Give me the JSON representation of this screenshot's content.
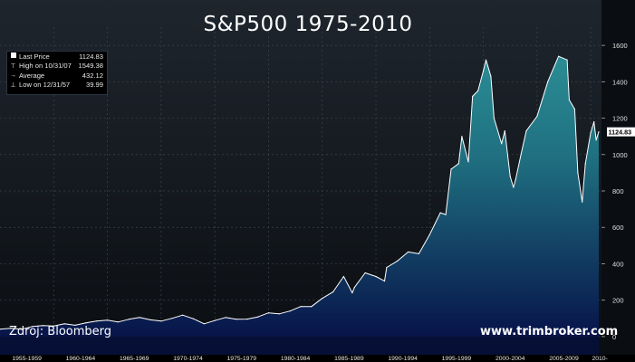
{
  "title": "S&P500 1975-2010",
  "legend": [
    {
      "icon": "square-icon",
      "label": "Last Price",
      "value": "1124.83"
    },
    {
      "icon": "high-marker-icon",
      "label": "High on 10/31/07",
      "value": "1549.38"
    },
    {
      "icon": "average-line-icon",
      "label": "Average",
      "value": "432.12"
    },
    {
      "icon": "low-marker-icon",
      "label": "Low on 12/31/57",
      "value": "39.99"
    }
  ],
  "last_price_tag": "1124.83",
  "source": "Zdroj: Bloomberg",
  "website": "www.trimbroker.com",
  "colors": {
    "background": "#0b0f14",
    "area_top": "#2a8b93",
    "area_bottom": "#07144a",
    "line": "#ffffff"
  },
  "chart_data": {
    "type": "area",
    "title": "S&P500 1975-2010",
    "xlabel": "",
    "ylabel": "",
    "xlim": [
      1955,
      2011
    ],
    "ylim": [
      -100,
      1700
    ],
    "y_ticks": [
      0,
      200,
      400,
      600,
      800,
      1000,
      1200,
      1400,
      1600
    ],
    "x_tick_labels": [
      "1955-1959",
      "1960-1964",
      "1965-1969",
      "1970-1974",
      "1975-1979",
      "1980-1984",
      "1985-1989",
      "1990-1994",
      "1995-1999",
      "2000-2004",
      "2005-2009",
      "2010-"
    ],
    "grid": true,
    "legend_position": "top-left",
    "series": [
      {
        "x": [
          1955,
          1956,
          1957,
          1958,
          1959,
          1960,
          1961,
          1962,
          1963,
          1964,
          1965,
          1966,
          1967,
          1968,
          1969,
          1970,
          1971,
          1972,
          1973,
          1974,
          1975,
          1976,
          1977,
          1978,
          1979,
          1980,
          1981,
          1982,
          1983,
          1984,
          1985,
          1986,
          1987,
          1987.8,
          1988,
          1989,
          1990,
          1990.8,
          1991,
          1992,
          1993,
          1994,
          1995,
          1996,
          1996.5,
          1997,
          1997.7,
          1998,
          1998.6,
          1999,
          1999.5,
          2000,
          2000.25,
          2000.7,
          2001,
          2001.7,
          2002,
          2002.5,
          2002.8,
          2003,
          2003.5,
          2004,
          2005,
          2006,
          2007,
          2007.8,
          2008,
          2008.5,
          2008.8,
          2009.2,
          2009.5,
          2010,
          2010.3,
          2010.5,
          2010.75
        ],
        "values": [
          40,
          45,
          40,
          55,
          60,
          58,
          70,
          62,
          75,
          85,
          90,
          80,
          95,
          105,
          92,
          85,
          100,
          118,
          98,
          70,
          88,
          105,
          95,
          96,
          108,
          130,
          125,
          140,
          165,
          165,
          210,
          245,
          330,
          240,
          270,
          350,
          330,
          305,
          380,
          415,
          465,
          455,
          560,
          680,
          670,
          920,
          950,
          1100,
          960,
          1320,
          1350,
          1460,
          1520,
          1430,
          1200,
          1060,
          1130,
          880,
          820,
          860,
          1000,
          1130,
          1210,
          1400,
          1540,
          1520,
          1300,
          1250,
          900,
          740,
          950,
          1120,
          1180,
          1080,
          1124.83
        ]
      }
    ]
  }
}
